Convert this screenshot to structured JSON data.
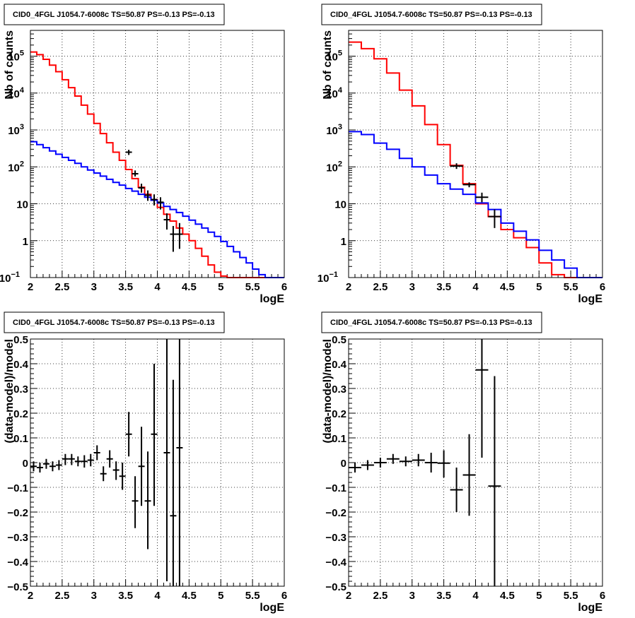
{
  "chart_data": [
    {
      "type": "line",
      "title": "CID0_4FGL J1054.7-6008c TS=50.87 PS=-0.13 PS=-0.13",
      "xlabel": "logE",
      "ylabel": "Nb of counts",
      "xlim": [
        2,
        6
      ],
      "ylim": [
        0.1,
        500000
      ],
      "yscale": "log",
      "grid": true,
      "x_ticks": [
        "2",
        "2.5",
        "3",
        "3.5",
        "4",
        "4.5",
        "5",
        "5.5",
        "6"
      ],
      "y_ticks": [
        {
          "v": 0.1,
          "label": "10",
          "sup": "−1"
        },
        {
          "v": 1,
          "label": "1",
          "sup": ""
        },
        {
          "v": 10,
          "label": "10",
          "sup": ""
        },
        {
          "v": 100,
          "label": "10",
          "sup": "2"
        },
        {
          "v": 1000,
          "label": "10",
          "sup": "3"
        },
        {
          "v": 10000,
          "label": "10",
          "sup": "4"
        },
        {
          "v": 100000,
          "label": "10",
          "sup": "5"
        }
      ],
      "bin_width": 0.1,
      "series": [
        {
          "color": "#ff0000",
          "kind": "step",
          "bin_start": 2.0,
          "values": [
            130000,
            110000,
            82000,
            57000,
            38000,
            23000,
            14000,
            8300,
            4700,
            2700,
            1500,
            800,
            450,
            250,
            150,
            85,
            48,
            28,
            18,
            13,
            8,
            5.2,
            3.4,
            2.2,
            1.5,
            1.0,
            0.62,
            0.38,
            0.22,
            0.14,
            0.11,
            0.1,
            0.1,
            0.1,
            0.1,
            0.1,
            0.1,
            0.1,
            0.1,
            0.1
          ]
        },
        {
          "color": "#0000ff",
          "kind": "step",
          "bin_start": 2.0,
          "values": [
            480,
            400,
            330,
            270,
            220,
            180,
            150,
            125,
            100,
            82,
            68,
            56,
            46,
            38,
            32,
            26,
            22,
            18,
            15,
            12.5,
            10.5,
            8.5,
            7,
            5.8,
            4.6,
            3.6,
            2.8,
            2.2,
            1.7,
            1.3,
            0.95,
            0.7,
            0.5,
            0.35,
            0.25,
            0.17,
            0.12,
            0.1,
            0.1,
            0.1
          ]
        },
        {
          "color": "#000000",
          "kind": "points",
          "xerr": 0.05,
          "points": [
            {
              "x": 3.55,
              "y": 250,
              "lo": 210,
              "hi": 290
            },
            {
              "x": 3.65,
              "y": 65,
              "lo": 55,
              "hi": 80
            },
            {
              "x": 3.75,
              "y": 27,
              "lo": 20,
              "hi": 35
            },
            {
              "x": 3.85,
              "y": 17,
              "lo": 12,
              "hi": 23
            },
            {
              "x": 3.95,
              "y": 13,
              "lo": 9,
              "hi": 18
            },
            {
              "x": 4.05,
              "y": 11,
              "lo": 7,
              "hi": 15
            },
            {
              "x": 4.15,
              "y": 3.7,
              "lo": 2,
              "hi": 5.5
            },
            {
              "x": 4.25,
              "y": 1.5,
              "lo": 0.5,
              "hi": 2.5
            },
            {
              "x": 4.35,
              "y": 1.5,
              "lo": 0.6,
              "hi": 3
            }
          ]
        }
      ]
    },
    {
      "type": "line",
      "title": "CID0_4FGL J1054.7-6008c TS=50.87 PS=-0.13 PS=-0.13",
      "xlabel": "logE",
      "ylabel": "Nb of counts",
      "xlim": [
        2,
        6
      ],
      "ylim": [
        0.1,
        500000
      ],
      "yscale": "log",
      "grid": true,
      "x_ticks": [
        "2",
        "2.5",
        "3",
        "3.5",
        "4",
        "4.5",
        "5",
        "5.5",
        "6"
      ],
      "y_ticks": [
        {
          "v": 0.1,
          "label": "10",
          "sup": "−1"
        },
        {
          "v": 1,
          "label": "1",
          "sup": ""
        },
        {
          "v": 10,
          "label": "10",
          "sup": ""
        },
        {
          "v": 100,
          "label": "10",
          "sup": "2"
        },
        {
          "v": 1000,
          "label": "10",
          "sup": "3"
        },
        {
          "v": 10000,
          "label": "10",
          "sup": "4"
        },
        {
          "v": 100000,
          "label": "10",
          "sup": "5"
        }
      ],
      "bin_width": 0.2,
      "series": [
        {
          "color": "#ff0000",
          "kind": "step",
          "bin_start": 2.0,
          "values": [
            240000,
            160000,
            85000,
            35000,
            12000,
            4500,
            1400,
            400,
            110,
            35,
            10,
            4.5,
            2,
            1.2,
            0.65,
            0.25,
            0.12,
            0.1,
            0.1,
            0.1
          ]
        },
        {
          "color": "#0000ff",
          "kind": "step",
          "bin_start": 2.0,
          "values": [
            900,
            750,
            440,
            300,
            170,
            100,
            60,
            35,
            25,
            18,
            10.5,
            7,
            3,
            1.8,
            1.05,
            0.55,
            0.3,
            0.18,
            0.1,
            0.1
          ]
        },
        {
          "color": "#000000",
          "kind": "points",
          "xerr": 0.1,
          "points": [
            {
              "x": 3.7,
              "y": 105,
              "lo": 88,
              "hi": 125
            },
            {
              "x": 3.9,
              "y": 33,
              "lo": 28,
              "hi": 38
            },
            {
              "x": 4.1,
              "y": 15,
              "lo": 11,
              "hi": 20
            },
            {
              "x": 4.3,
              "y": 4.5,
              "lo": 2.2,
              "hi": 7
            }
          ]
        }
      ]
    },
    {
      "type": "scatter",
      "title": "CID0_4FGL J1054.7-6008c TS=50.87 PS=-0.13 PS=-0.13",
      "xlabel": "logE",
      "ylabel": "(data-model)/model",
      "xlim": [
        2,
        6
      ],
      "ylim": [
        -0.5,
        0.5
      ],
      "yscale": "linear",
      "grid": true,
      "x_ticks": [
        "2",
        "2.5",
        "3",
        "3.5",
        "4",
        "4.5",
        "5",
        "5.5",
        "6"
      ],
      "y_ticks": [
        {
          "v": -0.5,
          "label": "−0.5",
          "sup": ""
        },
        {
          "v": -0.4,
          "label": "−0.4",
          "sup": ""
        },
        {
          "v": -0.3,
          "label": "−0.3",
          "sup": ""
        },
        {
          "v": -0.2,
          "label": "−0.2",
          "sup": ""
        },
        {
          "v": -0.1,
          "label": "−0.1",
          "sup": ""
        },
        {
          "v": 0,
          "label": "0",
          "sup": ""
        },
        {
          "v": 0.1,
          "label": "0.1",
          "sup": ""
        },
        {
          "v": 0.2,
          "label": "0.2",
          "sup": ""
        },
        {
          "v": 0.3,
          "label": "0.3",
          "sup": ""
        },
        {
          "v": 0.4,
          "label": "0.4",
          "sup": ""
        },
        {
          "v": 0.5,
          "label": "0.5",
          "sup": ""
        }
      ],
      "series": [
        {
          "color": "#000000",
          "kind": "points",
          "xerr": 0.05,
          "points": [
            {
              "x": 2.05,
              "y": -0.015,
              "lo": -0.035,
              "hi": 0.005
            },
            {
              "x": 2.15,
              "y": -0.02,
              "lo": -0.04,
              "hi": 0.0
            },
            {
              "x": 2.25,
              "y": -0.005,
              "lo": -0.025,
              "hi": 0.015
            },
            {
              "x": 2.35,
              "y": -0.015,
              "lo": -0.035,
              "hi": 0.005
            },
            {
              "x": 2.45,
              "y": -0.01,
              "lo": -0.03,
              "hi": 0.01
            },
            {
              "x": 2.55,
              "y": 0.015,
              "lo": -0.01,
              "hi": 0.035
            },
            {
              "x": 2.65,
              "y": 0.015,
              "lo": -0.01,
              "hi": 0.035
            },
            {
              "x": 2.75,
              "y": 0.005,
              "lo": -0.015,
              "hi": 0.025
            },
            {
              "x": 2.85,
              "y": 0.005,
              "lo": -0.02,
              "hi": 0.03
            },
            {
              "x": 2.95,
              "y": 0.01,
              "lo": -0.015,
              "hi": 0.035
            },
            {
              "x": 3.05,
              "y": 0.04,
              "lo": 0.01,
              "hi": 0.07
            },
            {
              "x": 3.15,
              "y": -0.045,
              "lo": -0.075,
              "hi": -0.015
            },
            {
              "x": 3.25,
              "y": 0.015,
              "lo": -0.02,
              "hi": 0.05
            },
            {
              "x": 3.35,
              "y": -0.03,
              "lo": -0.07,
              "hi": 0.005
            },
            {
              "x": 3.45,
              "y": -0.055,
              "lo": -0.11,
              "hi": 0.0
            },
            {
              "x": 3.55,
              "y": 0.115,
              "lo": 0.025,
              "hi": 0.205
            },
            {
              "x": 3.65,
              "y": -0.155,
              "lo": -0.265,
              "hi": -0.055
            },
            {
              "x": 3.75,
              "y": -0.015,
              "lo": -0.175,
              "hi": 0.145
            },
            {
              "x": 3.85,
              "y": -0.155,
              "lo": -0.35,
              "hi": 0.045
            },
            {
              "x": 3.95,
              "y": 0.115,
              "lo": -0.175,
              "hi": 0.4
            },
            {
              "x": 4.15,
              "y": 0.04,
              "lo": -0.48,
              "hi": 0.5
            },
            {
              "x": 4.25,
              "y": -0.215,
              "lo": -0.5,
              "hi": 0.335
            },
            {
              "x": 4.35,
              "y": 0.06,
              "lo": -0.5,
              "hi": 0.5
            }
          ]
        }
      ]
    },
    {
      "type": "scatter",
      "title": "CID0_4FGL J1054.7-6008c TS=50.87 PS=-0.13 PS=-0.13",
      "xlabel": "logE",
      "ylabel": "(data-model)/model",
      "xlim": [
        2,
        6
      ],
      "ylim": [
        -0.5,
        0.5
      ],
      "yscale": "linear",
      "grid": true,
      "x_ticks": [
        "2",
        "2.5",
        "3",
        "3.5",
        "4",
        "4.5",
        "5",
        "5.5",
        "6"
      ],
      "y_ticks": [
        {
          "v": -0.5,
          "label": "−0.5",
          "sup": ""
        },
        {
          "v": -0.4,
          "label": "−0.4",
          "sup": ""
        },
        {
          "v": -0.3,
          "label": "−0.3",
          "sup": ""
        },
        {
          "v": -0.2,
          "label": "−0.2",
          "sup": ""
        },
        {
          "v": -0.1,
          "label": "−0.1",
          "sup": ""
        },
        {
          "v": 0,
          "label": "0",
          "sup": ""
        },
        {
          "v": 0.1,
          "label": "0.1",
          "sup": ""
        },
        {
          "v": 0.2,
          "label": "0.2",
          "sup": ""
        },
        {
          "v": 0.3,
          "label": "0.3",
          "sup": ""
        },
        {
          "v": 0.4,
          "label": "0.4",
          "sup": ""
        },
        {
          "v": 0.5,
          "label": "0.5",
          "sup": ""
        }
      ],
      "series": [
        {
          "color": "#000000",
          "kind": "points",
          "xerr": 0.1,
          "points": [
            {
              "x": 2.1,
              "y": -0.02,
              "lo": -0.04,
              "hi": 0.0
            },
            {
              "x": 2.3,
              "y": -0.01,
              "lo": -0.03,
              "hi": 0.01
            },
            {
              "x": 2.5,
              "y": 0.0,
              "lo": -0.02,
              "hi": 0.02
            },
            {
              "x": 2.7,
              "y": 0.015,
              "lo": -0.005,
              "hi": 0.035
            },
            {
              "x": 2.9,
              "y": 0.005,
              "lo": -0.015,
              "hi": 0.025
            },
            {
              "x": 3.1,
              "y": 0.01,
              "lo": -0.015,
              "hi": 0.035
            },
            {
              "x": 3.3,
              "y": 0.0,
              "lo": -0.04,
              "hi": 0.04
            },
            {
              "x": 3.5,
              "y": -0.002,
              "lo": -0.06,
              "hi": 0.05
            },
            {
              "x": 3.7,
              "y": -0.11,
              "lo": -0.2,
              "hi": -0.02
            },
            {
              "x": 3.9,
              "y": -0.05,
              "lo": -0.215,
              "hi": 0.115
            },
            {
              "x": 4.1,
              "y": 0.375,
              "lo": 0.02,
              "hi": 0.5
            },
            {
              "x": 4.3,
              "y": -0.095,
              "lo": -0.5,
              "hi": 0.35
            }
          ]
        }
      ]
    }
  ]
}
